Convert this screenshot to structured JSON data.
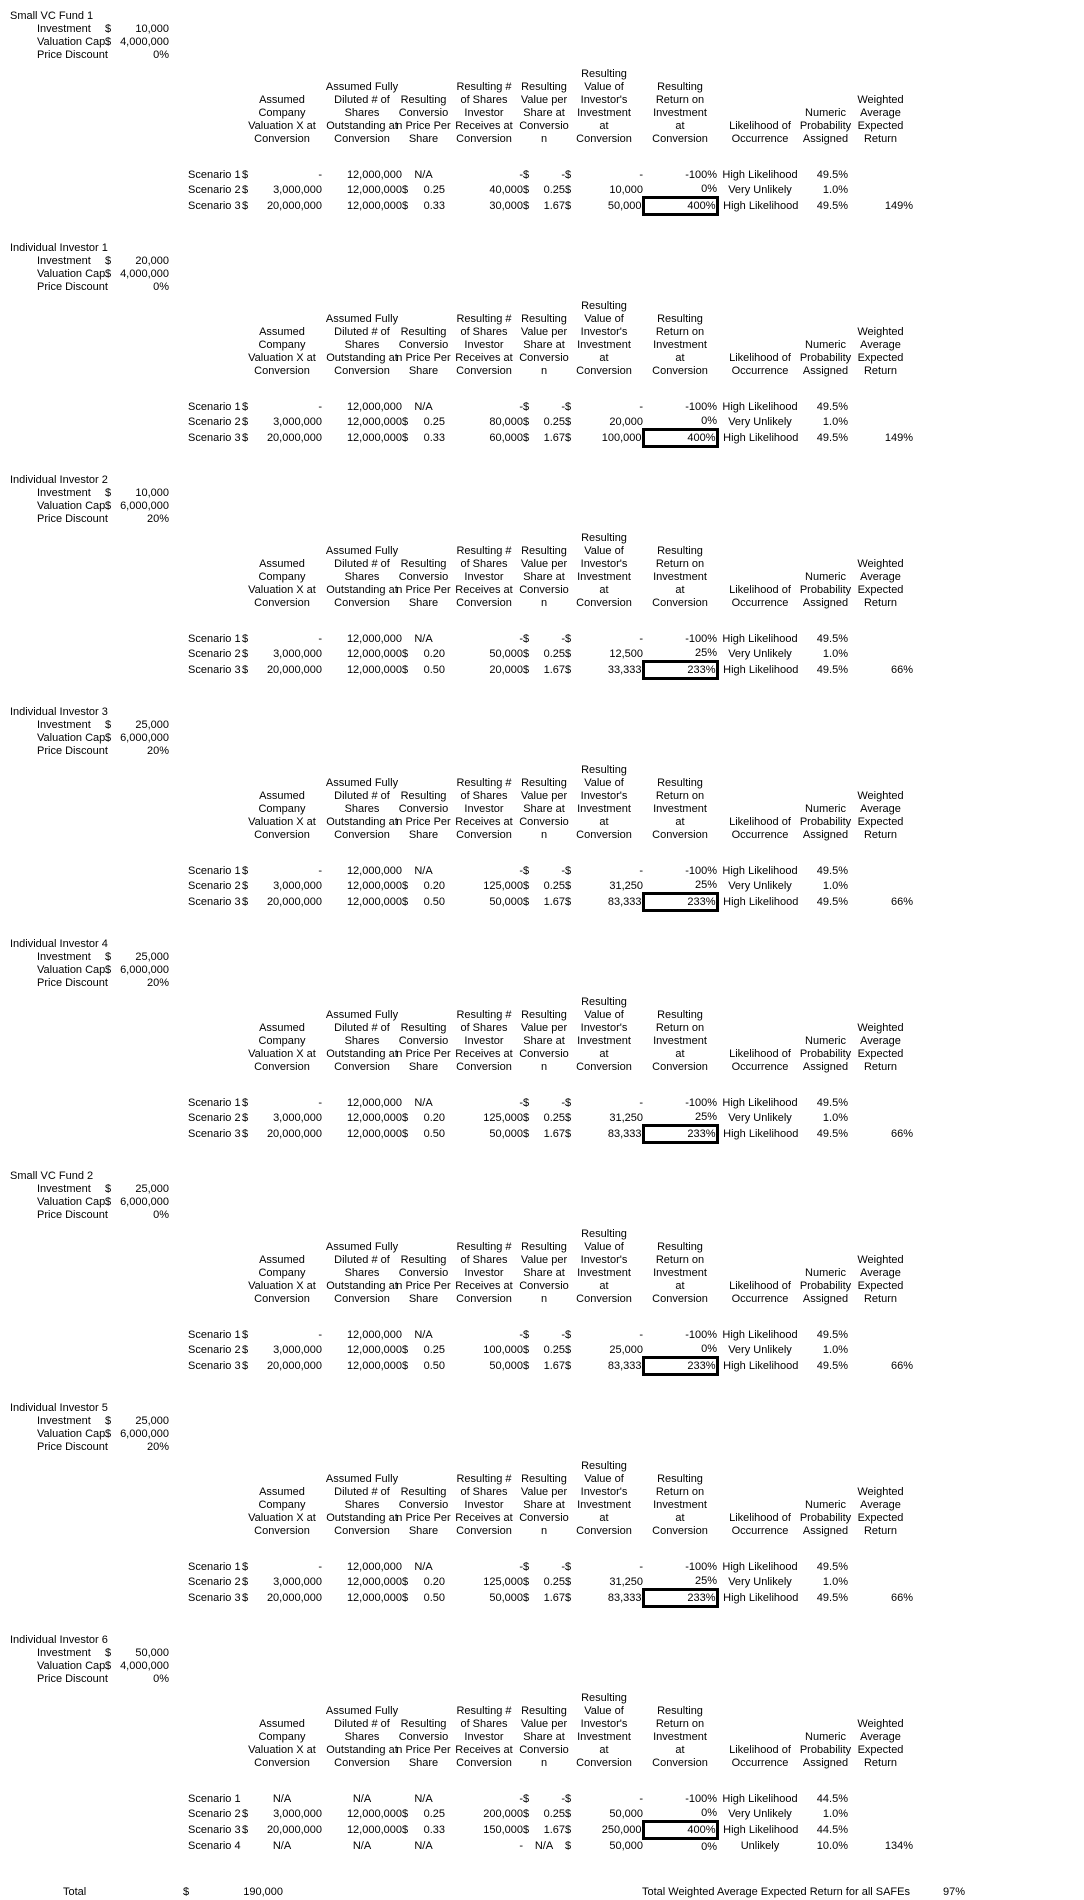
{
  "columns": [
    {
      "id": "valuation",
      "span": 2,
      "text": "Assumed\nCompany\nValuation X at\nConversion"
    },
    {
      "id": "shares-outstanding",
      "span": 1,
      "text": "Assumed Fully\nDiluted # of\nShares\nOutstanding at\nConversion"
    },
    {
      "id": "conversion-price",
      "span": 2,
      "text": "Resulting\nConversio\nn Price Per\nShare"
    },
    {
      "id": "shares-received",
      "span": 1,
      "text": "Resulting #\nof Shares\nInvestor\nReceives at\nConversion"
    },
    {
      "id": "value-per-share",
      "span": 2,
      "text": "Resulting\nValue per\nShare at\nConversio\nn"
    },
    {
      "id": "investment-value",
      "span": 2,
      "text": "Resulting\nValue of\nInvestor's\nInvestment\nat\nConversion"
    },
    {
      "id": "return-on-investment",
      "span": 1,
      "text": "Resulting\nReturn on\nInvestment\nat\nConversion"
    },
    {
      "id": "likelihood",
      "span": 1,
      "text": "Likelihood of\nOccurrence"
    },
    {
      "id": "probability",
      "span": 1,
      "text": "Numeric\nProbability\nAssigned"
    },
    {
      "id": "weighted-return",
      "span": 1,
      "text": "Weighted\nAverage\nExpected\nReturn"
    }
  ],
  "blocks": [
    {
      "title": "Small VC Fund 1",
      "params": [
        {
          "label": "Investment",
          "currency": "$",
          "value": "10,000"
        },
        {
          "label": "Valuation Cap",
          "currency": "$",
          "value": "4,000,000"
        },
        {
          "label": "Price Discount",
          "currency": "",
          "value": "0%"
        }
      ],
      "scenarios": [
        {
          "label": "Scenario 1",
          "vcur": "$",
          "val": "-",
          "shares": "12,000,000",
          "pcur": "",
          "price": "N/A",
          "recv": "-",
          "scur": "$",
          "vps": "-",
          "icur": "$",
          "inv": "-",
          "roi": "-100%",
          "boxed": false,
          "like": "High Likelihood",
          "prob": "49.5%",
          "waer": ""
        },
        {
          "label": "Scenario 2",
          "vcur": "$",
          "val": "3,000,000",
          "shares": "12,000,000",
          "pcur": "$",
          "price": "0.25",
          "recv": "40,000",
          "scur": "$",
          "vps": "0.25",
          "icur": "$",
          "inv": "10,000",
          "roi": "0%",
          "boxed": false,
          "like": "Very Unlikely",
          "prob": "1.0%",
          "waer": ""
        },
        {
          "label": "Scenario 3",
          "vcur": "$",
          "val": "20,000,000",
          "shares": "12,000,000",
          "pcur": "$",
          "price": "0.33",
          "recv": "30,000",
          "scur": "$",
          "vps": "1.67",
          "icur": "$",
          "inv": "50,000",
          "roi": "400%",
          "boxed": true,
          "like": "High Likelihood",
          "prob": "49.5%",
          "waer": "149%"
        }
      ]
    },
    {
      "title": "Individual Investor 1",
      "params": [
        {
          "label": "Investment",
          "currency": "$",
          "value": "20,000"
        },
        {
          "label": "Valuation Cap",
          "currency": "$",
          "value": "4,000,000"
        },
        {
          "label": "Price Discount",
          "currency": "",
          "value": "0%"
        }
      ],
      "scenarios": [
        {
          "label": "Scenario 1",
          "vcur": "$",
          "val": "-",
          "shares": "12,000,000",
          "pcur": "",
          "price": "N/A",
          "recv": "-",
          "scur": "$",
          "vps": "-",
          "icur": "$",
          "inv": "-",
          "roi": "-100%",
          "boxed": false,
          "like": "High Likelihood",
          "prob": "49.5%",
          "waer": ""
        },
        {
          "label": "Scenario 2",
          "vcur": "$",
          "val": "3,000,000",
          "shares": "12,000,000",
          "pcur": "$",
          "price": "0.25",
          "recv": "80,000",
          "scur": "$",
          "vps": "0.25",
          "icur": "$",
          "inv": "20,000",
          "roi": "0%",
          "boxed": false,
          "like": "Very Unlikely",
          "prob": "1.0%",
          "waer": ""
        },
        {
          "label": "Scenario 3",
          "vcur": "$",
          "val": "20,000,000",
          "shares": "12,000,000",
          "pcur": "$",
          "price": "0.33",
          "recv": "60,000",
          "scur": "$",
          "vps": "1.67",
          "icur": "$",
          "inv": "100,000",
          "roi": "400%",
          "boxed": true,
          "like": "High Likelihood",
          "prob": "49.5%",
          "waer": "149%"
        }
      ]
    },
    {
      "title": "Individual Investor 2",
      "params": [
        {
          "label": "Investment",
          "currency": "$",
          "value": "10,000"
        },
        {
          "label": "Valuation Cap",
          "currency": "$",
          "value": "6,000,000"
        },
        {
          "label": "Price Discount",
          "currency": "",
          "value": "20%"
        }
      ],
      "scenarios": [
        {
          "label": "Scenario 1",
          "vcur": "$",
          "val": "-",
          "shares": "12,000,000",
          "pcur": "",
          "price": "N/A",
          "recv": "-",
          "scur": "$",
          "vps": "-",
          "icur": "$",
          "inv": "-",
          "roi": "-100%",
          "boxed": false,
          "like": "High Likelihood",
          "prob": "49.5%",
          "waer": ""
        },
        {
          "label": "Scenario 2",
          "vcur": "$",
          "val": "3,000,000",
          "shares": "12,000,000",
          "pcur": "$",
          "price": "0.20",
          "recv": "50,000",
          "scur": "$",
          "vps": "0.25",
          "icur": "$",
          "inv": "12,500",
          "roi": "25%",
          "boxed": false,
          "like": "Very Unlikely",
          "prob": "1.0%",
          "waer": ""
        },
        {
          "label": "Scenario 3",
          "vcur": "$",
          "val": "20,000,000",
          "shares": "12,000,000",
          "pcur": "$",
          "price": "0.50",
          "recv": "20,000",
          "scur": "$",
          "vps": "1.67",
          "icur": "$",
          "inv": "33,333",
          "roi": "233%",
          "boxed": true,
          "like": "High Likelihood",
          "prob": "49.5%",
          "waer": "66%"
        }
      ]
    },
    {
      "title": "Individual Investor 3",
      "params": [
        {
          "label": "Investment",
          "currency": "$",
          "value": "25,000"
        },
        {
          "label": "Valuation Cap",
          "currency": "$",
          "value": "6,000,000"
        },
        {
          "label": "Price Discount",
          "currency": "",
          "value": "20%"
        }
      ],
      "scenarios": [
        {
          "label": "Scenario 1",
          "vcur": "$",
          "val": "-",
          "shares": "12,000,000",
          "pcur": "",
          "price": "N/A",
          "recv": "-",
          "scur": "$",
          "vps": "-",
          "icur": "$",
          "inv": "-",
          "roi": "-100%",
          "boxed": false,
          "like": "High Likelihood",
          "prob": "49.5%",
          "waer": ""
        },
        {
          "label": "Scenario 2",
          "vcur": "$",
          "val": "3,000,000",
          "shares": "12,000,000",
          "pcur": "$",
          "price": "0.20",
          "recv": "125,000",
          "scur": "$",
          "vps": "0.25",
          "icur": "$",
          "inv": "31,250",
          "roi": "25%",
          "boxed": false,
          "like": "Very Unlikely",
          "prob": "1.0%",
          "waer": ""
        },
        {
          "label": "Scenario 3",
          "vcur": "$",
          "val": "20,000,000",
          "shares": "12,000,000",
          "pcur": "$",
          "price": "0.50",
          "recv": "50,000",
          "scur": "$",
          "vps": "1.67",
          "icur": "$",
          "inv": "83,333",
          "roi": "233%",
          "boxed": true,
          "like": "High Likelihood",
          "prob": "49.5%",
          "waer": "66%"
        }
      ]
    },
    {
      "title": "Individual Investor 4",
      "params": [
        {
          "label": "Investment",
          "currency": "$",
          "value": "25,000"
        },
        {
          "label": "Valuation Cap",
          "currency": "$",
          "value": "6,000,000"
        },
        {
          "label": "Price Discount",
          "currency": "",
          "value": "20%"
        }
      ],
      "scenarios": [
        {
          "label": "Scenario 1",
          "vcur": "$",
          "val": "-",
          "shares": "12,000,000",
          "pcur": "",
          "price": "N/A",
          "recv": "-",
          "scur": "$",
          "vps": "-",
          "icur": "$",
          "inv": "-",
          "roi": "-100%",
          "boxed": false,
          "like": "High Likelihood",
          "prob": "49.5%",
          "waer": ""
        },
        {
          "label": "Scenario 2",
          "vcur": "$",
          "val": "3,000,000",
          "shares": "12,000,000",
          "pcur": "$",
          "price": "0.20",
          "recv": "125,000",
          "scur": "$",
          "vps": "0.25",
          "icur": "$",
          "inv": "31,250",
          "roi": "25%",
          "boxed": false,
          "like": "Very Unlikely",
          "prob": "1.0%",
          "waer": ""
        },
        {
          "label": "Scenario 3",
          "vcur": "$",
          "val": "20,000,000",
          "shares": "12,000,000",
          "pcur": "$",
          "price": "0.50",
          "recv": "50,000",
          "scur": "$",
          "vps": "1.67",
          "icur": "$",
          "inv": "83,333",
          "roi": "233%",
          "boxed": true,
          "like": "High Likelihood",
          "prob": "49.5%",
          "waer": "66%"
        }
      ]
    },
    {
      "title": "Small VC Fund 2",
      "params": [
        {
          "label": "Investment",
          "currency": "$",
          "value": "25,000"
        },
        {
          "label": "Valuation Cap",
          "currency": "$",
          "value": "6,000,000"
        },
        {
          "label": "Price Discount",
          "currency": "",
          "value": "0%"
        }
      ],
      "scenarios": [
        {
          "label": "Scenario 1",
          "vcur": "$",
          "val": "-",
          "shares": "12,000,000",
          "pcur": "",
          "price": "N/A",
          "recv": "-",
          "scur": "$",
          "vps": "-",
          "icur": "$",
          "inv": "-",
          "roi": "-100%",
          "boxed": false,
          "like": "High Likelihood",
          "prob": "49.5%",
          "waer": ""
        },
        {
          "label": "Scenario 2",
          "vcur": "$",
          "val": "3,000,000",
          "shares": "12,000,000",
          "pcur": "$",
          "price": "0.25",
          "recv": "100,000",
          "scur": "$",
          "vps": "0.25",
          "icur": "$",
          "inv": "25,000",
          "roi": "0%",
          "boxed": false,
          "like": "Very Unlikely",
          "prob": "1.0%",
          "waer": ""
        },
        {
          "label": "Scenario 3",
          "vcur": "$",
          "val": "20,000,000",
          "shares": "12,000,000",
          "pcur": "$",
          "price": "0.50",
          "recv": "50,000",
          "scur": "$",
          "vps": "1.67",
          "icur": "$",
          "inv": "83,333",
          "roi": "233%",
          "boxed": true,
          "like": "High Likelihood",
          "prob": "49.5%",
          "waer": "66%"
        }
      ]
    },
    {
      "title": "Individual Investor 5",
      "params": [
        {
          "label": "Investment",
          "currency": "$",
          "value": "25,000"
        },
        {
          "label": "Valuation Cap",
          "currency": "$",
          "value": "6,000,000"
        },
        {
          "label": "Price Discount",
          "currency": "",
          "value": "20%"
        }
      ],
      "scenarios": [
        {
          "label": "Scenario 1",
          "vcur": "$",
          "val": "-",
          "shares": "12,000,000",
          "pcur": "",
          "price": "N/A",
          "recv": "-",
          "scur": "$",
          "vps": "-",
          "icur": "$",
          "inv": "-",
          "roi": "-100%",
          "boxed": false,
          "like": "High Likelihood",
          "prob": "49.5%",
          "waer": ""
        },
        {
          "label": "Scenario 2",
          "vcur": "$",
          "val": "3,000,000",
          "shares": "12,000,000",
          "pcur": "$",
          "price": "0.20",
          "recv": "125,000",
          "scur": "$",
          "vps": "0.25",
          "icur": "$",
          "inv": "31,250",
          "roi": "25%",
          "boxed": false,
          "like": "Very Unlikely",
          "prob": "1.0%",
          "waer": ""
        },
        {
          "label": "Scenario 3",
          "vcur": "$",
          "val": "20,000,000",
          "shares": "12,000,000",
          "pcur": "$",
          "price": "0.50",
          "recv": "50,000",
          "scur": "$",
          "vps": "1.67",
          "icur": "$",
          "inv": "83,333",
          "roi": "233%",
          "boxed": true,
          "like": "High Likelihood",
          "prob": "49.5%",
          "waer": "66%"
        }
      ]
    },
    {
      "title": "Individual Investor 6",
      "params": [
        {
          "label": "Investment",
          "currency": "$",
          "value": "50,000"
        },
        {
          "label": "Valuation Cap",
          "currency": "$",
          "value": "4,000,000"
        },
        {
          "label": "Price Discount",
          "currency": "",
          "value": "0%"
        }
      ],
      "scenarios": [
        {
          "label": "Scenario 1",
          "vcur": "",
          "val": "N/A",
          "shares": "N/A",
          "pcur": "",
          "price": "N/A",
          "recv": "-",
          "scur": "$",
          "vps": "-",
          "icur": "$",
          "inv": "-",
          "roi": "-100%",
          "boxed": false,
          "like": "High Likelihood",
          "prob": "44.5%",
          "waer": ""
        },
        {
          "label": "Scenario 2",
          "vcur": "$",
          "val": "3,000,000",
          "shares": "12,000,000",
          "pcur": "$",
          "price": "0.25",
          "recv": "200,000",
          "scur": "$",
          "vps": "0.25",
          "icur": "$",
          "inv": "50,000",
          "roi": "0%",
          "boxed": false,
          "like": "Very Unlikely",
          "prob": "1.0%",
          "waer": ""
        },
        {
          "label": "Scenario 3",
          "vcur": "$",
          "val": "20,000,000",
          "shares": "12,000,000",
          "pcur": "$",
          "price": "0.33",
          "recv": "150,000",
          "scur": "$",
          "vps": "1.67",
          "icur": "$",
          "inv": "250,000",
          "roi": "400%",
          "boxed": true,
          "like": "High Likelihood",
          "prob": "44.5%",
          "waer": ""
        },
        {
          "label": "Scenario 4",
          "vcur": "",
          "val": "N/A",
          "shares": "N/A",
          "pcur": "",
          "price": "N/A",
          "recv": "-",
          "scur": "",
          "vps": "N/A",
          "icur": "$",
          "inv": "50,000",
          "roi": "0%",
          "boxed": false,
          "like": "Unlikely",
          "prob": "10.0%",
          "waer": "134%"
        }
      ]
    }
  ],
  "footer": {
    "total_label": "Total",
    "total_currency": "$",
    "total_value": "190,000",
    "summary_label": "Total Weighted Average Expected Return for all SAFEs",
    "summary_value": "97%"
  }
}
